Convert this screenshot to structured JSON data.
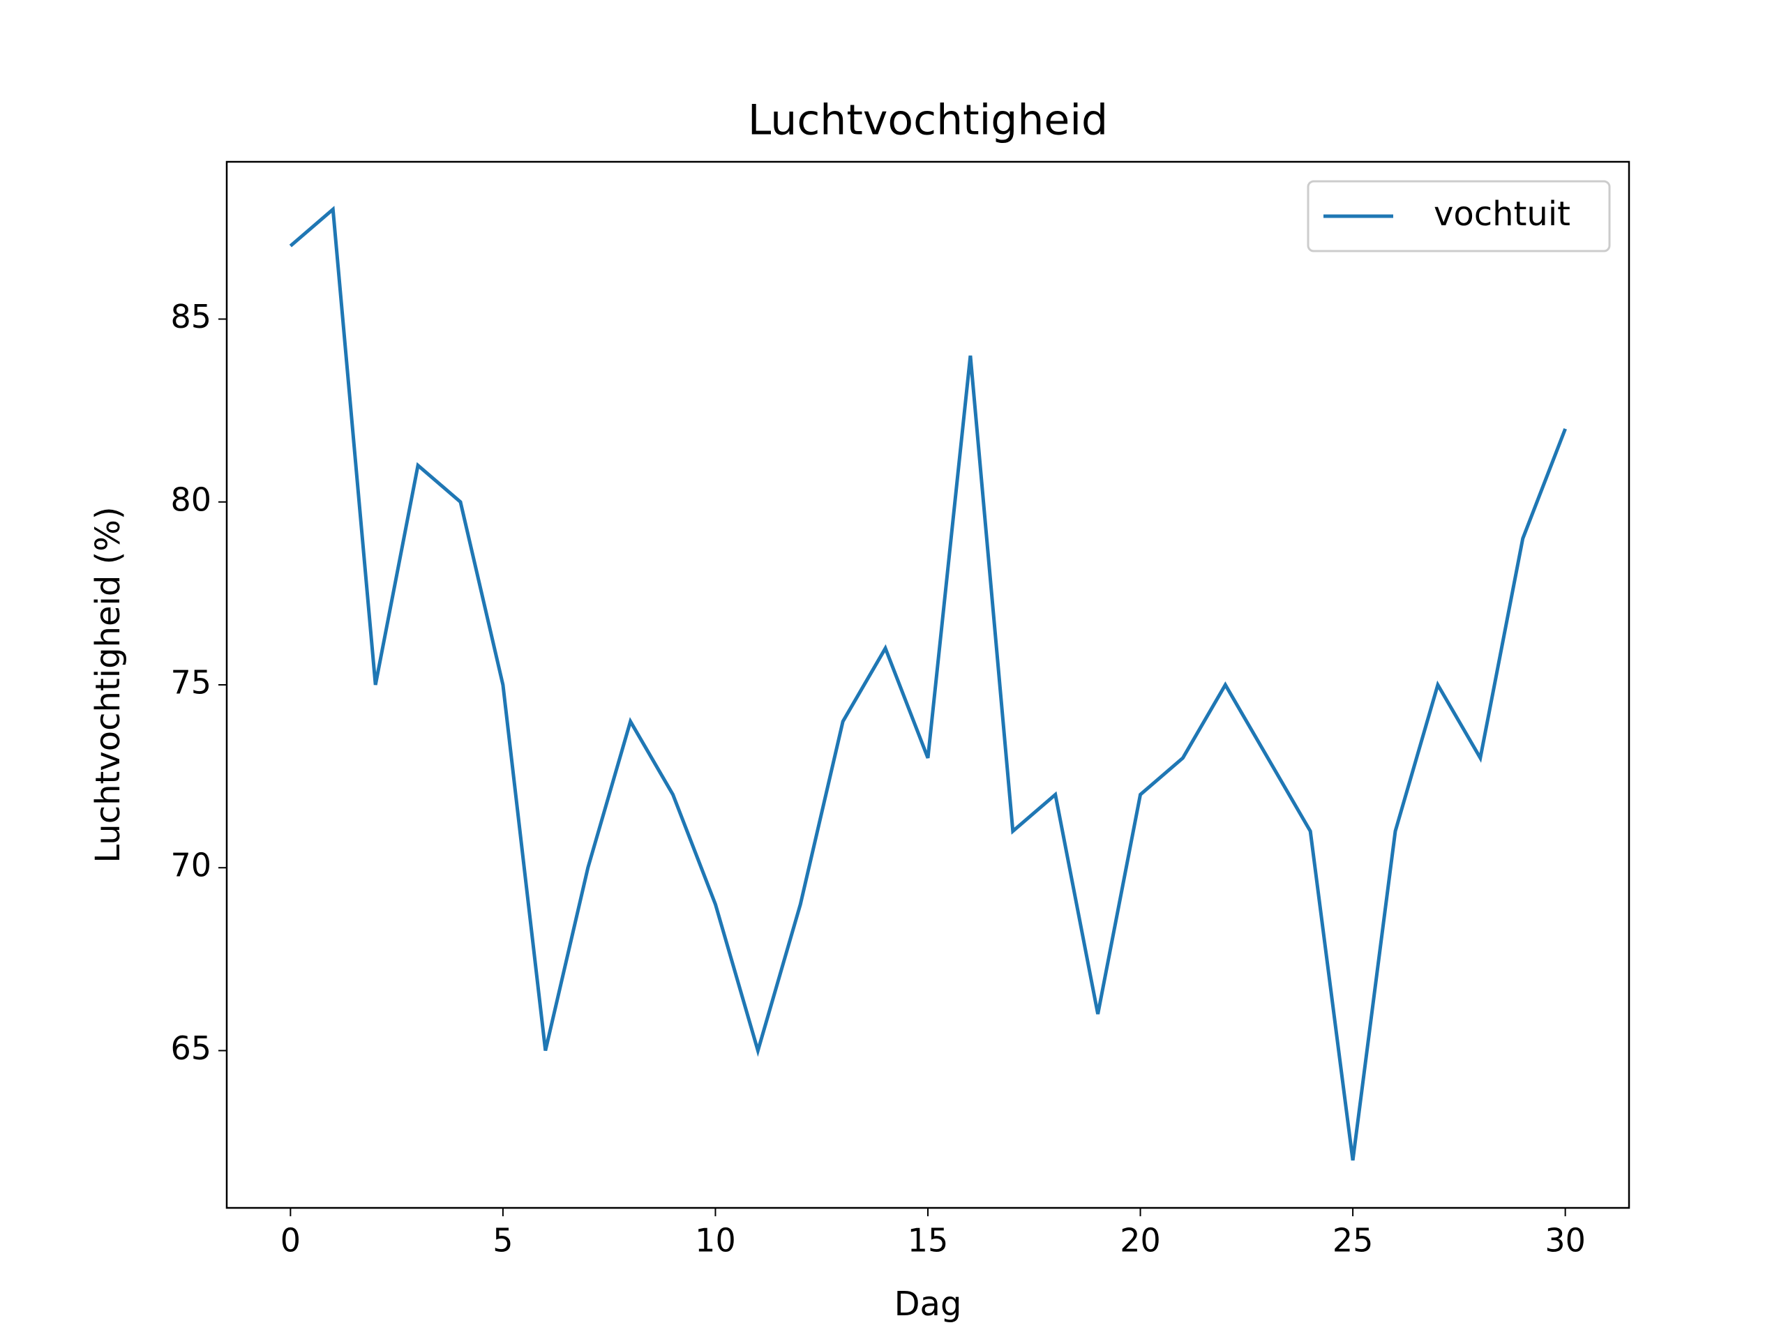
{
  "chart_data": {
    "type": "line",
    "title": "Luchtvochtigheid",
    "x_label": "Dag",
    "y_label": "Luchtvochtigheid (%)",
    "x": [
      0,
      1,
      2,
      3,
      4,
      5,
      6,
      7,
      8,
      9,
      10,
      11,
      12,
      13,
      14,
      15,
      16,
      17,
      18,
      19,
      20,
      21,
      22,
      23,
      24,
      25,
      26,
      27,
      28,
      29,
      30
    ],
    "series": [
      {
        "name": "vochtuit",
        "color": "#1f77b4",
        "values": [
          87,
          88,
          75,
          81,
          80,
          75,
          65,
          70,
          74,
          72,
          69,
          65,
          69,
          74,
          76,
          73,
          84,
          71,
          72,
          66,
          72,
          73,
          75,
          73,
          71,
          62,
          71,
          75,
          73,
          79,
          82
        ]
      }
    ],
    "xlim": [
      -1.5,
      31.5
    ],
    "xticks": [
      0,
      5,
      10,
      15,
      20,
      25,
      30
    ],
    "ylim": [
      60.7,
      89.3
    ],
    "yticks": [
      65,
      70,
      75,
      80,
      85
    ],
    "legend": "upper right",
    "grid": false
  }
}
